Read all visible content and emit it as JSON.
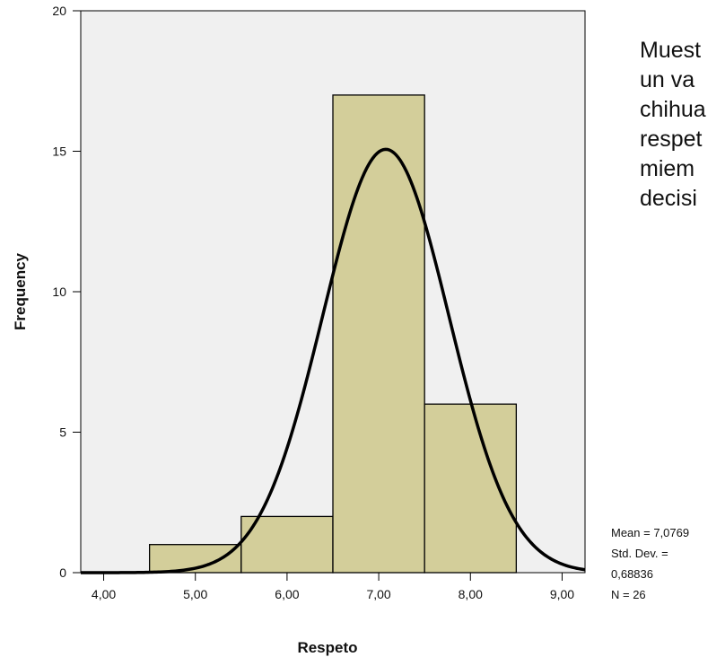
{
  "side_text": {
    "lines": [
      "Muest",
      "un va",
      "chihua",
      "respet",
      "miem",
      "decisi"
    ]
  },
  "stats": {
    "mean": "Mean = 7,0769",
    "std_label": "Std. Dev. =",
    "std_value": "0,68836",
    "n": "N = 26"
  },
  "colors": {
    "plot_background": "#f0f0f0",
    "bar_fill": "#d3ce9a",
    "curve": "#000000"
  },
  "chart_data": {
    "type": "bar",
    "subtype": "histogram-with-normal-curve",
    "xlabel": "Respeto",
    "ylabel": "Frequency",
    "xlim": [
      3.75,
      9.25
    ],
    "ylim": [
      0,
      20
    ],
    "x_ticks": [
      4,
      5,
      6,
      7,
      8,
      9
    ],
    "x_tick_labels": [
      "4,00",
      "5,00",
      "6,00",
      "7,00",
      "8,00",
      "9,00"
    ],
    "y_ticks": [
      0,
      5,
      10,
      15,
      20
    ],
    "y_tick_labels": [
      "0",
      "5",
      "10",
      "15",
      "20"
    ],
    "bins": [
      {
        "start": 4.5,
        "end": 5.5,
        "count": 1
      },
      {
        "start": 5.5,
        "end": 6.5,
        "count": 2
      },
      {
        "start": 6.5,
        "end": 7.5,
        "count": 17
      },
      {
        "start": 7.5,
        "end": 8.5,
        "count": 6
      }
    ],
    "normal_curve": {
      "mean": 7.0769,
      "std": 0.68836,
      "n": 26,
      "bin_width": 1
    },
    "grid": false,
    "legend": "none"
  }
}
